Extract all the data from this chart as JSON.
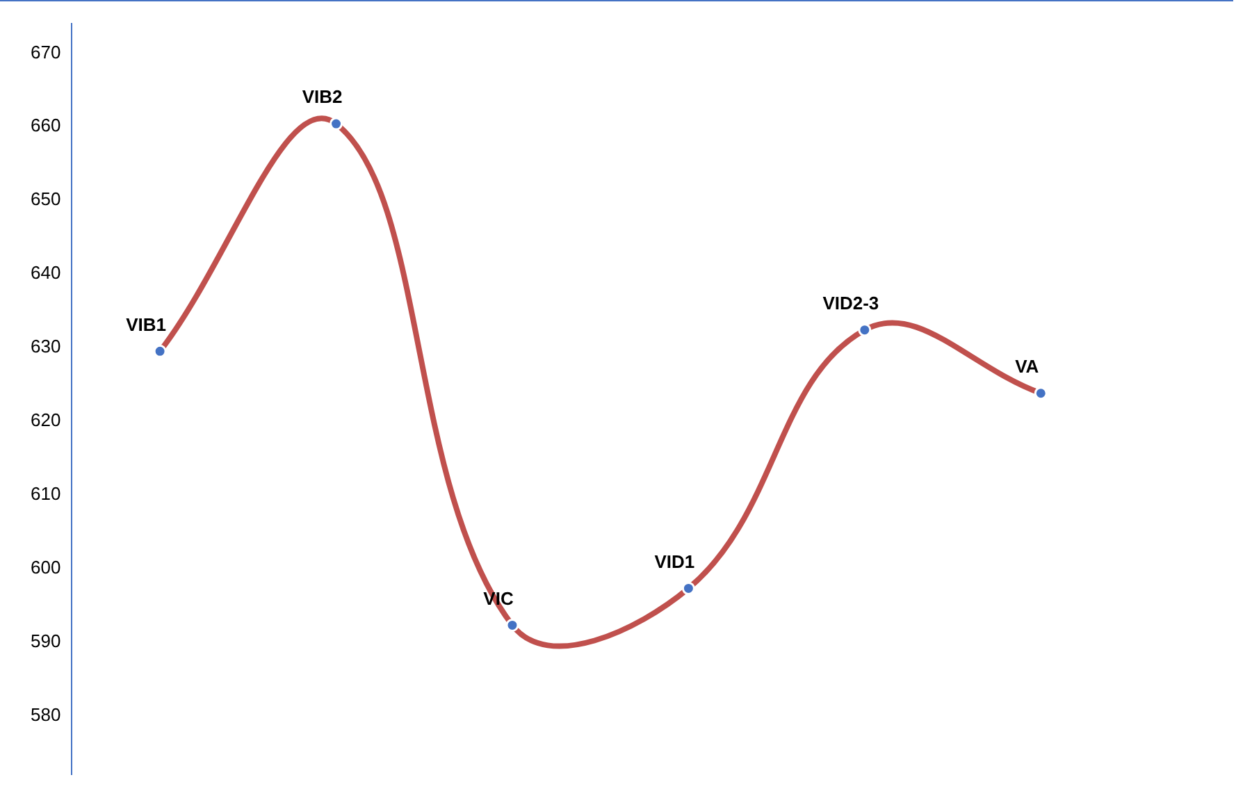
{
  "chart_data": {
    "type": "line",
    "categories": [
      "VIB1",
      "VIB2",
      "VIC",
      "VID1",
      "VID2-3",
      "VA"
    ],
    "tick_labels": "y",
    "ylim": [
      572,
      674
    ],
    "yticks": [
      580,
      590,
      600,
      610,
      620,
      630,
      640,
      650,
      660,
      670
    ],
    "grid": false,
    "legend": false,
    "series": [
      {
        "color": "#c0504d",
        "values": [
          629.5,
          660.4,
          592.3,
          597.3,
          632.4,
          623.8
        ]
      },
      {
        "type": "scatter",
        "color": "#4472c4",
        "marker": "circle",
        "values": [
          629.5,
          660.4,
          592.3,
          597.3,
          632.4,
          623.8
        ]
      }
    ]
  }
}
